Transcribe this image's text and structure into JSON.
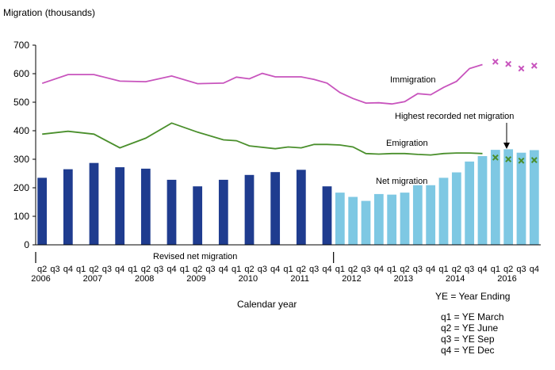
{
  "chart_data": {
    "type": "bar",
    "title": "",
    "ylabel": "Migration (thousands)",
    "xlabel": "Calendar year",
    "ylim": [
      0,
      700
    ],
    "yticks": [
      0,
      100,
      200,
      300,
      400,
      500,
      600,
      700
    ],
    "grid": false,
    "quarters": [
      "q2",
      "q3",
      "q4",
      "q1",
      "q2",
      "q3",
      "q4",
      "q1",
      "q2",
      "q3",
      "q4",
      "q1",
      "q2",
      "q3",
      "q4",
      "q1",
      "q2",
      "q3",
      "q4",
      "q1",
      "q2",
      "q3",
      "q4",
      "q1",
      "q2",
      "q3",
      "q4",
      "q1",
      "q2",
      "q3",
      "q4",
      "q1",
      "q2",
      "q3",
      "q4",
      "q1",
      "q2",
      "q3",
      "q4"
    ],
    "years": [
      {
        "label": "2006",
        "index": 0
      },
      {
        "label": "2007",
        "index": 4
      },
      {
        "label": "2008",
        "index": 8
      },
      {
        "label": "2009",
        "index": 12
      },
      {
        "label": "2010",
        "index": 16
      },
      {
        "label": "2011",
        "index": 20
      },
      {
        "label": "2012",
        "index": 24
      },
      {
        "label": "2013",
        "index": 28
      },
      {
        "label": "2014",
        "index": 32
      },
      {
        "label": "2016",
        "index": 36
      }
    ],
    "series": [
      {
        "name": "Net migration",
        "kind": "bar",
        "color": "#1f3c8f",
        "revised_color": "#1f3c8f",
        "provisional_color": "#7ec8e3",
        "revised_x": [
          0,
          2,
          4,
          6,
          8,
          10,
          12,
          14,
          16,
          18,
          20,
          22
        ],
        "revised_values": [
          235,
          265,
          287,
          272,
          267,
          228,
          205,
          228,
          245,
          255,
          263,
          205
        ],
        "provisional_x": [
          23,
          24,
          25,
          26,
          27,
          28,
          29,
          30,
          31,
          32,
          33,
          34,
          35,
          36,
          37,
          38
        ],
        "provisional_values": [
          183,
          168,
          154,
          178,
          176,
          183,
          209,
          209,
          235,
          254,
          292,
          311,
          333,
          335,
          323,
          332
        ]
      },
      {
        "name": "Immigration",
        "kind": "line",
        "color": "#c854bd",
        "x": [
          0,
          2,
          4,
          6,
          8,
          10,
          12,
          14,
          15,
          16,
          17,
          18,
          20,
          21,
          22,
          23,
          24,
          25,
          26,
          27,
          28,
          29,
          30,
          31,
          32,
          33,
          34
        ],
        "values": [
          566,
          597,
          597,
          574,
          572,
          592,
          565,
          567,
          588,
          582,
          601,
          589,
          589,
          580,
          567,
          534,
          513,
          497,
          498,
          494,
          502,
          530,
          526,
          552,
          573,
          618,
          632
        ]
      },
      {
        "name": "Emigration",
        "kind": "line",
        "color": "#4a8f2c",
        "x": [
          0,
          2,
          4,
          6,
          8,
          10,
          12,
          14,
          15,
          16,
          18,
          19,
          20,
          21,
          22,
          23,
          24,
          25,
          26,
          27,
          28,
          29,
          30,
          31,
          32,
          33,
          34
        ],
        "values": [
          388,
          398,
          388,
          340,
          374,
          427,
          395,
          368,
          365,
          347,
          337,
          343,
          340,
          352,
          352,
          350,
          343,
          320,
          318,
          320,
          320,
          317,
          315,
          320,
          322,
          322,
          320
        ]
      },
      {
        "name": "Immigration (latest)",
        "kind": "marker",
        "marker": "x",
        "color": "#c854bd",
        "x": [
          35,
          36,
          37,
          38
        ],
        "values": [
          642,
          634,
          618,
          628
        ]
      },
      {
        "name": "Emigration (latest)",
        "kind": "marker",
        "marker": "x",
        "color": "#4a8f2c",
        "x": [
          35,
          36,
          37,
          38
        ],
        "values": [
          306,
          300,
          295,
          297
        ]
      }
    ],
    "labels": {
      "immigration": "Immigration",
      "emigration": "Emigration",
      "net_migration": "Net migration",
      "highest": "Highest recorded net migration",
      "revised": "Revised net migration"
    },
    "key": {
      "title": "YE = Year Ending",
      "lines": [
        "q1 = YE March",
        "q2 = YE June",
        "q3 = YE Sep",
        "q4 = YE Dec"
      ]
    }
  }
}
